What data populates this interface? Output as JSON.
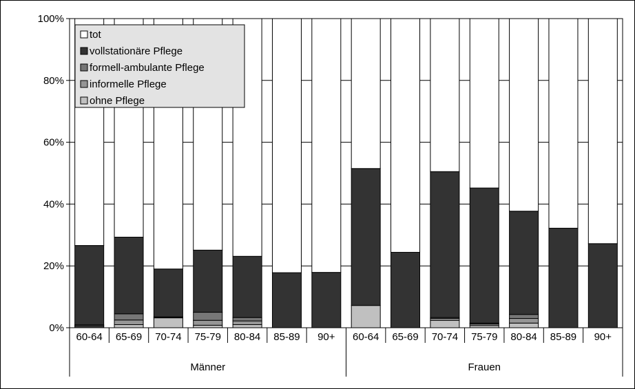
{
  "chart_data": {
    "type": "bar",
    "stacked": true,
    "percent": true,
    "groups": [
      {
        "label": "Männer",
        "categories": [
          "60-64",
          "65-69",
          "70-74",
          "75-79",
          "80-84",
          "85-89",
          "90+"
        ]
      },
      {
        "label": "Frauen",
        "categories": [
          "60-64",
          "65-69",
          "70-74",
          "75-79",
          "80-84",
          "85-89",
          "90+"
        ]
      }
    ],
    "series": [
      {
        "name": "ohne Pflege",
        "color": "#c0c0c0",
        "values": [
          0.3,
          1.0,
          3.2,
          0.8,
          1.0,
          0,
          0,
          7.2,
          0,
          2.4,
          0.7,
          1.5,
          0,
          0
        ]
      },
      {
        "name": "informelle Pflege",
        "color": "#969696",
        "values": [
          0.4,
          1.5,
          0.2,
          1.6,
          1.2,
          0,
          0,
          0,
          0,
          0.6,
          0.5,
          1.5,
          0,
          0
        ]
      },
      {
        "name": "formell-ambulante Pflege",
        "color": "#777777",
        "values": [
          0.2,
          2.0,
          0.1,
          2.6,
          1.1,
          0,
          0,
          0,
          0,
          0.3,
          0.3,
          1.3,
          0,
          0
        ]
      },
      {
        "name": "vollstationäre Pflege",
        "color": "#333333",
        "values": [
          25.7,
          24.8,
          15.5,
          20.1,
          19.8,
          17.8,
          17.9,
          44.3,
          24.4,
          47.2,
          43.7,
          33.4,
          32.2,
          27.2
        ]
      },
      {
        "name": "tot",
        "color": "#ffffff",
        "values": [
          73.4,
          70.7,
          81.0,
          74.9,
          76.9,
          82.2,
          82.1,
          48.5,
          75.6,
          49.5,
          54.8,
          62.3,
          67.8,
          72.8
        ]
      }
    ],
    "legend_order": [
      "tot",
      "vollstationäre Pflege",
      "formell-ambulante Pflege",
      "informelle Pflege",
      "ohne Pflege"
    ],
    "yticks": [
      "0%",
      "20%",
      "40%",
      "60%",
      "80%",
      "100%"
    ],
    "ylim": [
      0,
      100
    ],
    "grid": true,
    "legend_position": "top-left"
  }
}
